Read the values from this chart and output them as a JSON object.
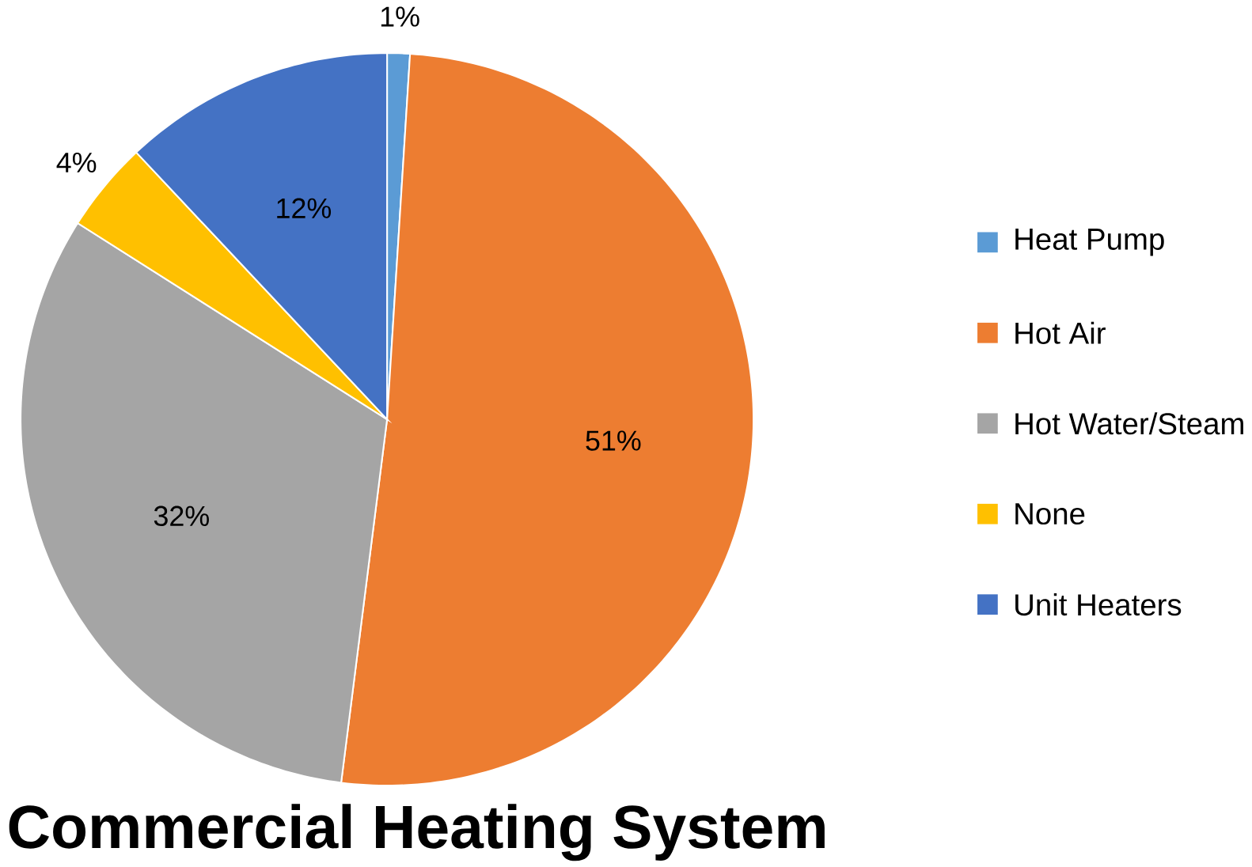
{
  "chart_data": {
    "type": "pie",
    "title": "Commercial Heating System",
    "categories": [
      "Heat Pump",
      "Hot Air",
      "Hot Water/Steam",
      "None",
      "Unit Heaters"
    ],
    "values": [
      1,
      51,
      32,
      4,
      12
    ],
    "value_labels": [
      "1%",
      "51%",
      "32%",
      "4%",
      "12%"
    ],
    "colors": [
      "#5b9bd5",
      "#ed7d31",
      "#a5a5a5",
      "#ffc000",
      "#4472c4"
    ],
    "legend": "right"
  }
}
